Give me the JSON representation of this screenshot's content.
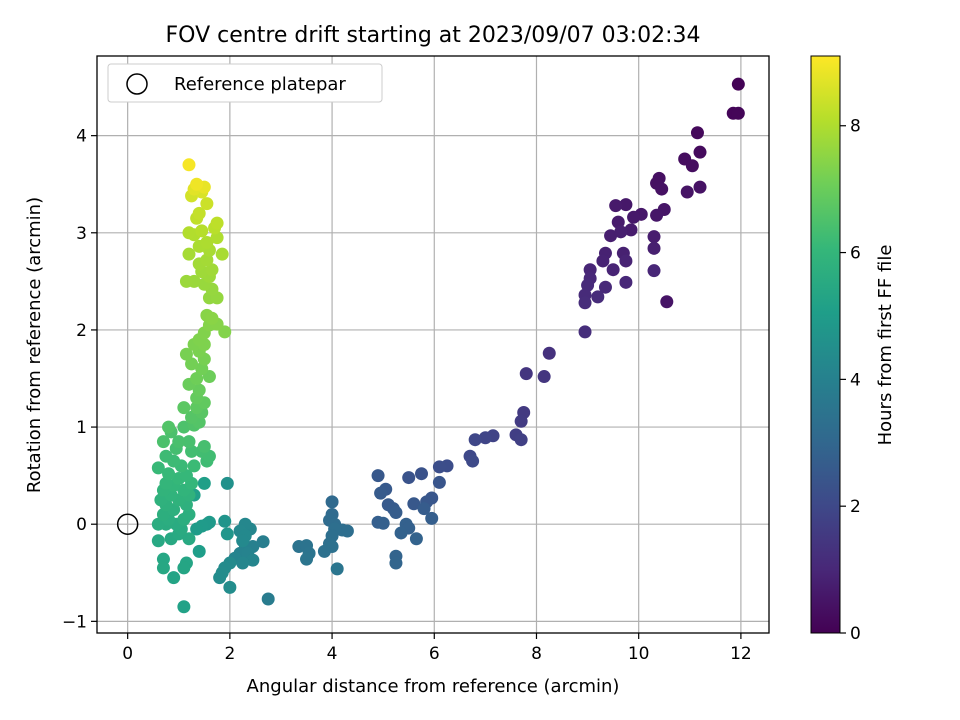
{
  "chart_data": {
    "type": "scatter",
    "title": "FOV centre drift starting at 2023/09/07 03:02:34",
    "xlabel": "Angular distance from reference (arcmin)",
    "ylabel": "Rotation from reference (arcmin)",
    "xlim": [
      -0.6,
      12.55
    ],
    "ylim": [
      -1.12,
      4.82
    ],
    "x_ticks": [
      0,
      2,
      4,
      6,
      8,
      10,
      12
    ],
    "y_ticks": [
      -1,
      0,
      1,
      2,
      3,
      4
    ],
    "grid": true,
    "legend": {
      "placement": "top-left",
      "entries": [
        {
          "label": "Reference platepar",
          "marker": "open-circle",
          "color": "#000000"
        }
      ]
    },
    "reference_point": {
      "x": 0,
      "y": 0,
      "label": "Reference platepar"
    },
    "colorbar": {
      "label": "Hours from first FF file",
      "range": [
        0,
        9.1
      ],
      "ticks": [
        0,
        2,
        4,
        6,
        8
      ],
      "colormap": "viridis",
      "stops": [
        "#440154",
        "#482878",
        "#3e4989",
        "#31688e",
        "#26828e",
        "#1f9e89",
        "#35b779",
        "#6ece58",
        "#b5de2b",
        "#fde725"
      ]
    },
    "points": [
      {
        "x": 11.95,
        "y": 4.53,
        "c": 0.05
      },
      {
        "x": 11.85,
        "y": 4.23,
        "c": 0.1
      },
      {
        "x": 11.95,
        "y": 4.23,
        "c": 0.12
      },
      {
        "x": 11.15,
        "y": 4.03,
        "c": 0.2
      },
      {
        "x": 11.2,
        "y": 3.83,
        "c": 0.25
      },
      {
        "x": 10.9,
        "y": 3.76,
        "c": 0.3
      },
      {
        "x": 11.05,
        "y": 3.69,
        "c": 0.32
      },
      {
        "x": 10.4,
        "y": 3.56,
        "c": 0.38
      },
      {
        "x": 10.35,
        "y": 3.51,
        "c": 0.4
      },
      {
        "x": 10.45,
        "y": 3.45,
        "c": 0.42
      },
      {
        "x": 11.2,
        "y": 3.47,
        "c": 0.45
      },
      {
        "x": 10.95,
        "y": 3.42,
        "c": 0.48
      },
      {
        "x": 10.5,
        "y": 3.24,
        "c": 0.52
      },
      {
        "x": 10.35,
        "y": 3.18,
        "c": 0.55
      },
      {
        "x": 10.05,
        "y": 3.19,
        "c": 0.58
      },
      {
        "x": 9.75,
        "y": 3.29,
        "c": 0.6
      },
      {
        "x": 9.9,
        "y": 3.16,
        "c": 0.62
      },
      {
        "x": 9.55,
        "y": 3.28,
        "c": 0.66
      },
      {
        "x": 9.6,
        "y": 3.11,
        "c": 0.68
      },
      {
        "x": 9.85,
        "y": 3.03,
        "c": 0.7
      },
      {
        "x": 10.3,
        "y": 2.96,
        "c": 0.72
      },
      {
        "x": 9.45,
        "y": 2.97,
        "c": 0.75
      },
      {
        "x": 9.65,
        "y": 3.01,
        "c": 0.77
      },
      {
        "x": 10.3,
        "y": 2.84,
        "c": 0.8
      },
      {
        "x": 9.7,
        "y": 2.79,
        "c": 0.82
      },
      {
        "x": 9.35,
        "y": 2.79,
        "c": 0.85
      },
      {
        "x": 9.3,
        "y": 2.71,
        "c": 0.87
      },
      {
        "x": 9.75,
        "y": 2.71,
        "c": 0.9
      },
      {
        "x": 9.5,
        "y": 2.62,
        "c": 0.92
      },
      {
        "x": 9.05,
        "y": 2.62,
        "c": 0.95
      },
      {
        "x": 10.3,
        "y": 2.61,
        "c": 0.97
      },
      {
        "x": 9.05,
        "y": 2.53,
        "c": 1.0
      },
      {
        "x": 9.75,
        "y": 2.49,
        "c": 1.02
      },
      {
        "x": 9.35,
        "y": 2.44,
        "c": 1.05
      },
      {
        "x": 9.0,
        "y": 2.46,
        "c": 1.07
      },
      {
        "x": 8.95,
        "y": 2.36,
        "c": 1.1
      },
      {
        "x": 9.2,
        "y": 2.34,
        "c": 1.12
      },
      {
        "x": 8.95,
        "y": 2.28,
        "c": 1.15
      },
      {
        "x": 10.55,
        "y": 2.29,
        "c": 0.5
      },
      {
        "x": 8.95,
        "y": 1.98,
        "c": 1.2
      },
      {
        "x": 8.25,
        "y": 1.76,
        "c": 1.3
      },
      {
        "x": 7.8,
        "y": 1.55,
        "c": 1.4
      },
      {
        "x": 8.15,
        "y": 1.52,
        "c": 1.45
      },
      {
        "x": 7.75,
        "y": 1.15,
        "c": 1.55
      },
      {
        "x": 7.7,
        "y": 1.06,
        "c": 1.6
      },
      {
        "x": 7.6,
        "y": 0.92,
        "c": 1.7
      },
      {
        "x": 7.7,
        "y": 0.87,
        "c": 1.75
      },
      {
        "x": 7.15,
        "y": 0.91,
        "c": 1.85
      },
      {
        "x": 7.0,
        "y": 0.89,
        "c": 1.9
      },
      {
        "x": 6.8,
        "y": 0.87,
        "c": 1.95
      },
      {
        "x": 6.7,
        "y": 0.7,
        "c": 2.0
      },
      {
        "x": 6.75,
        "y": 0.65,
        "c": 2.05
      },
      {
        "x": 6.25,
        "y": 0.6,
        "c": 2.15
      },
      {
        "x": 6.1,
        "y": 0.59,
        "c": 2.2
      },
      {
        "x": 5.75,
        "y": 0.52,
        "c": 2.3
      },
      {
        "x": 5.5,
        "y": 0.48,
        "c": 2.35
      },
      {
        "x": 6.1,
        "y": 0.43,
        "c": 2.4
      },
      {
        "x": 4.9,
        "y": 0.5,
        "c": 2.5
      },
      {
        "x": 5.05,
        "y": 0.36,
        "c": 2.55
      },
      {
        "x": 4.95,
        "y": 0.32,
        "c": 2.6
      },
      {
        "x": 5.95,
        "y": 0.27,
        "c": 2.45
      },
      {
        "x": 5.85,
        "y": 0.23,
        "c": 2.47
      },
      {
        "x": 5.6,
        "y": 0.21,
        "c": 2.52
      },
      {
        "x": 5.1,
        "y": 0.2,
        "c": 2.58
      },
      {
        "x": 5.2,
        "y": 0.16,
        "c": 2.62
      },
      {
        "x": 5.8,
        "y": 0.16,
        "c": 2.65
      },
      {
        "x": 5.25,
        "y": 0.12,
        "c": 2.68
      },
      {
        "x": 5.95,
        "y": 0.06,
        "c": 2.7
      },
      {
        "x": 4.9,
        "y": 0.02,
        "c": 2.75
      },
      {
        "x": 5.0,
        "y": 0.01,
        "c": 2.78
      },
      {
        "x": 5.45,
        "y": 0.0,
        "c": 2.8
      },
      {
        "x": 5.5,
        "y": -0.04,
        "c": 2.82
      },
      {
        "x": 5.35,
        "y": -0.09,
        "c": 2.85
      },
      {
        "x": 5.65,
        "y": -0.15,
        "c": 2.88
      },
      {
        "x": 5.25,
        "y": -0.33,
        "c": 2.9
      },
      {
        "x": 5.25,
        "y": -0.4,
        "c": 2.92
      },
      {
        "x": 4.0,
        "y": 0.23,
        "c": 3.1
      },
      {
        "x": 4.0,
        "y": 0.1,
        "c": 3.15
      },
      {
        "x": 3.95,
        "y": 0.04,
        "c": 3.2
      },
      {
        "x": 4.05,
        "y": 0.0,
        "c": 3.22
      },
      {
        "x": 4.2,
        "y": -0.06,
        "c": 3.25
      },
      {
        "x": 4.3,
        "y": -0.07,
        "c": 3.28
      },
      {
        "x": 4.05,
        "y": -0.05,
        "c": 3.3
      },
      {
        "x": 4.0,
        "y": -0.12,
        "c": 3.32
      },
      {
        "x": 3.95,
        "y": -0.2,
        "c": 3.35
      },
      {
        "x": 4.0,
        "y": -0.23,
        "c": 3.38
      },
      {
        "x": 3.85,
        "y": -0.28,
        "c": 3.4
      },
      {
        "x": 3.35,
        "y": -0.23,
        "c": 3.45
      },
      {
        "x": 3.5,
        "y": -0.22,
        "c": 3.48
      },
      {
        "x": 3.55,
        "y": -0.3,
        "c": 3.5
      },
      {
        "x": 3.5,
        "y": -0.36,
        "c": 3.52
      },
      {
        "x": 4.1,
        "y": -0.46,
        "c": 3.55
      },
      {
        "x": 2.75,
        "y": -0.77,
        "c": 3.8
      },
      {
        "x": 2.65,
        "y": -0.18,
        "c": 3.9
      },
      {
        "x": 2.45,
        "y": -0.23,
        "c": 3.95
      },
      {
        "x": 2.3,
        "y": -0.25,
        "c": 4.0
      },
      {
        "x": 2.2,
        "y": -0.3,
        "c": 4.05
      },
      {
        "x": 2.35,
        "y": -0.3,
        "c": 4.08
      },
      {
        "x": 2.1,
        "y": -0.35,
        "c": 4.12
      },
      {
        "x": 2.45,
        "y": -0.37,
        "c": 4.15
      },
      {
        "x": 2.25,
        "y": -0.4,
        "c": 4.18
      },
      {
        "x": 2.4,
        "y": -0.05,
        "c": 4.2
      },
      {
        "x": 2.3,
        "y": 0.0,
        "c": 4.22
      },
      {
        "x": 2.2,
        "y": -0.07,
        "c": 4.25
      },
      {
        "x": 2.3,
        "y": -0.12,
        "c": 4.28
      },
      {
        "x": 2.25,
        "y": -0.17,
        "c": 4.3
      },
      {
        "x": 2.0,
        "y": -0.4,
        "c": 4.35
      },
      {
        "x": 1.9,
        "y": -0.45,
        "c": 4.38
      },
      {
        "x": 1.85,
        "y": -0.5,
        "c": 4.4
      },
      {
        "x": 1.8,
        "y": -0.55,
        "c": 4.42
      },
      {
        "x": 2.0,
        "y": -0.65,
        "c": 4.45
      },
      {
        "x": 1.95,
        "y": 0.42,
        "c": 4.6
      },
      {
        "x": 1.9,
        "y": 0.03,
        "c": 4.7
      },
      {
        "x": 1.95,
        "y": -0.1,
        "c": 4.75
      },
      {
        "x": 1.55,
        "y": 0.0,
        "c": 4.85
      },
      {
        "x": 1.6,
        "y": 0.02,
        "c": 4.9
      },
      {
        "x": 1.45,
        "y": -0.02,
        "c": 4.95
      },
      {
        "x": 1.35,
        "y": -0.05,
        "c": 5.0
      },
      {
        "x": 1.4,
        "y": -0.28,
        "c": 5.05
      },
      {
        "x": 1.5,
        "y": 0.42,
        "c": 5.1
      },
      {
        "x": 1.3,
        "y": 0.3,
        "c": 5.15
      },
      {
        "x": 1.1,
        "y": -0.85,
        "c": 5.2
      },
      {
        "x": 0.9,
        "y": -0.55,
        "c": 5.3
      },
      {
        "x": 1.15,
        "y": -0.4,
        "c": 5.32
      },
      {
        "x": 1.1,
        "y": -0.45,
        "c": 5.35
      },
      {
        "x": 0.7,
        "y": -0.36,
        "c": 5.4
      },
      {
        "x": 0.7,
        "y": -0.45,
        "c": 5.42
      },
      {
        "x": 0.6,
        "y": -0.17,
        "c": 5.45
      },
      {
        "x": 0.85,
        "y": -0.15,
        "c": 5.48
      },
      {
        "x": 1.0,
        "y": -0.1,
        "c": 5.5
      },
      {
        "x": 1.2,
        "y": -0.15,
        "c": 5.52
      },
      {
        "x": 1.05,
        "y": -0.05,
        "c": 5.55
      },
      {
        "x": 0.95,
        "y": 0.0,
        "c": 5.58
      },
      {
        "x": 0.75,
        "y": 0.0,
        "c": 5.6
      },
      {
        "x": 0.6,
        "y": 0.0,
        "c": 5.62
      },
      {
        "x": 0.8,
        "y": 0.05,
        "c": 5.65
      },
      {
        "x": 1.1,
        "y": 0.05,
        "c": 5.68
      },
      {
        "x": 1.2,
        "y": 0.1,
        "c": 5.7
      },
      {
        "x": 0.7,
        "y": 0.1,
        "c": 5.72
      },
      {
        "x": 0.9,
        "y": 0.15,
        "c": 5.75
      },
      {
        "x": 1.15,
        "y": 0.2,
        "c": 5.78
      },
      {
        "x": 0.75,
        "y": 0.2,
        "c": 5.8
      },
      {
        "x": 0.65,
        "y": 0.25,
        "c": 5.82
      },
      {
        "x": 1.0,
        "y": 0.25,
        "c": 5.85
      },
      {
        "x": 1.2,
        "y": 0.3,
        "c": 5.88
      },
      {
        "x": 0.85,
        "y": 0.3,
        "c": 5.9
      },
      {
        "x": 0.7,
        "y": 0.35,
        "c": 5.92
      },
      {
        "x": 1.1,
        "y": 0.35,
        "c": 5.95
      },
      {
        "x": 0.9,
        "y": 0.4,
        "c": 5.98
      },
      {
        "x": 0.75,
        "y": 0.42,
        "c": 6.0
      },
      {
        "x": 1.25,
        "y": 0.42,
        "c": 6.02
      },
      {
        "x": 1.0,
        "y": 0.47,
        "c": 6.05
      },
      {
        "x": 1.15,
        "y": 0.5,
        "c": 6.08
      },
      {
        "x": 0.8,
        "y": 0.52,
        "c": 6.1
      },
      {
        "x": 0.6,
        "y": 0.58,
        "c": 6.12
      },
      {
        "x": 1.05,
        "y": 0.6,
        "c": 6.15
      },
      {
        "x": 1.3,
        "y": 0.6,
        "c": 6.18
      },
      {
        "x": 0.9,
        "y": 0.65,
        "c": 6.2
      },
      {
        "x": 0.75,
        "y": 0.7,
        "c": 6.22
      },
      {
        "x": 1.55,
        "y": 0.65,
        "c": 6.25
      },
      {
        "x": 1.6,
        "y": 0.7,
        "c": 6.28
      },
      {
        "x": 1.45,
        "y": 0.75,
        "c": 6.3
      },
      {
        "x": 1.25,
        "y": 0.75,
        "c": 6.32
      },
      {
        "x": 0.95,
        "y": 0.78,
        "c": 6.35
      },
      {
        "x": 1.5,
        "y": 0.8,
        "c": 6.38
      },
      {
        "x": 1.2,
        "y": 0.85,
        "c": 6.4
      },
      {
        "x": 1.0,
        "y": 0.85,
        "c": 6.42
      },
      {
        "x": 0.7,
        "y": 0.85,
        "c": 6.45
      },
      {
        "x": 0.85,
        "y": 0.95,
        "c": 6.48
      },
      {
        "x": 1.1,
        "y": 1.0,
        "c": 6.5
      },
      {
        "x": 1.3,
        "y": 1.02,
        "c": 6.55
      },
      {
        "x": 0.8,
        "y": 1.0,
        "c": 6.58
      },
      {
        "x": 1.4,
        "y": 1.05,
        "c": 6.62
      },
      {
        "x": 1.25,
        "y": 1.1,
        "c": 6.65
      },
      {
        "x": 1.45,
        "y": 1.15,
        "c": 6.7
      },
      {
        "x": 1.1,
        "y": 1.2,
        "c": 6.75
      },
      {
        "x": 1.35,
        "y": 1.2,
        "c": 6.8
      },
      {
        "x": 1.5,
        "y": 1.25,
        "c": 6.85
      },
      {
        "x": 1.35,
        "y": 1.3,
        "c": 6.9
      },
      {
        "x": 1.4,
        "y": 1.38,
        "c": 6.95
      },
      {
        "x": 1.2,
        "y": 1.44,
        "c": 7.0
      },
      {
        "x": 1.6,
        "y": 1.52,
        "c": 7.05
      },
      {
        "x": 1.35,
        "y": 1.5,
        "c": 7.08
      },
      {
        "x": 1.45,
        "y": 1.6,
        "c": 7.12
      },
      {
        "x": 1.25,
        "y": 1.65,
        "c": 7.15
      },
      {
        "x": 1.5,
        "y": 1.7,
        "c": 7.2
      },
      {
        "x": 1.15,
        "y": 1.75,
        "c": 7.22
      },
      {
        "x": 1.4,
        "y": 1.78,
        "c": 7.25
      },
      {
        "x": 1.3,
        "y": 1.85,
        "c": 7.28
      },
      {
        "x": 1.5,
        "y": 1.85,
        "c": 7.3
      },
      {
        "x": 1.4,
        "y": 1.9,
        "c": 7.32
      },
      {
        "x": 1.5,
        "y": 1.97,
        "c": 7.35
      },
      {
        "x": 1.9,
        "y": 1.98,
        "c": 7.38
      },
      {
        "x": 1.6,
        "y": 2.05,
        "c": 7.4
      },
      {
        "x": 1.75,
        "y": 2.06,
        "c": 7.42
      },
      {
        "x": 1.55,
        "y": 2.15,
        "c": 7.45
      },
      {
        "x": 1.65,
        "y": 2.12,
        "c": 7.48
      },
      {
        "x": 1.6,
        "y": 2.33,
        "c": 7.6
      },
      {
        "x": 1.75,
        "y": 2.33,
        "c": 7.62
      },
      {
        "x": 1.65,
        "y": 2.42,
        "c": 7.65
      },
      {
        "x": 1.5,
        "y": 2.47,
        "c": 7.68
      },
      {
        "x": 1.3,
        "y": 2.5,
        "c": 7.7
      },
      {
        "x": 1.15,
        "y": 2.5,
        "c": 7.72
      },
      {
        "x": 1.6,
        "y": 2.55,
        "c": 7.75
      },
      {
        "x": 1.45,
        "y": 2.6,
        "c": 7.78
      },
      {
        "x": 1.65,
        "y": 2.62,
        "c": 7.8
      },
      {
        "x": 1.4,
        "y": 2.68,
        "c": 7.82
      },
      {
        "x": 1.55,
        "y": 2.72,
        "c": 7.85
      },
      {
        "x": 1.2,
        "y": 2.78,
        "c": 7.88
      },
      {
        "x": 1.85,
        "y": 2.78,
        "c": 7.9
      },
      {
        "x": 1.6,
        "y": 2.82,
        "c": 7.92
      },
      {
        "x": 1.4,
        "y": 2.86,
        "c": 7.95
      },
      {
        "x": 1.55,
        "y": 2.9,
        "c": 7.98
      },
      {
        "x": 1.75,
        "y": 2.95,
        "c": 8.0
      },
      {
        "x": 1.3,
        "y": 2.98,
        "c": 8.02
      },
      {
        "x": 1.2,
        "y": 3.0,
        "c": 8.05
      },
      {
        "x": 1.45,
        "y": 3.02,
        "c": 8.1
      },
      {
        "x": 1.7,
        "y": 3.05,
        "c": 8.15
      },
      {
        "x": 1.75,
        "y": 3.1,
        "c": 8.2
      },
      {
        "x": 1.35,
        "y": 3.15,
        "c": 8.25
      },
      {
        "x": 1.4,
        "y": 3.2,
        "c": 8.3
      },
      {
        "x": 1.55,
        "y": 3.3,
        "c": 8.4
      },
      {
        "x": 1.25,
        "y": 3.38,
        "c": 8.5
      },
      {
        "x": 1.45,
        "y": 3.42,
        "c": 8.6
      },
      {
        "x": 1.3,
        "y": 3.45,
        "c": 8.7
      },
      {
        "x": 1.5,
        "y": 3.47,
        "c": 8.8
      },
      {
        "x": 1.35,
        "y": 3.5,
        "c": 8.9
      },
      {
        "x": 1.2,
        "y": 3.7,
        "c": 9.0
      }
    ]
  }
}
